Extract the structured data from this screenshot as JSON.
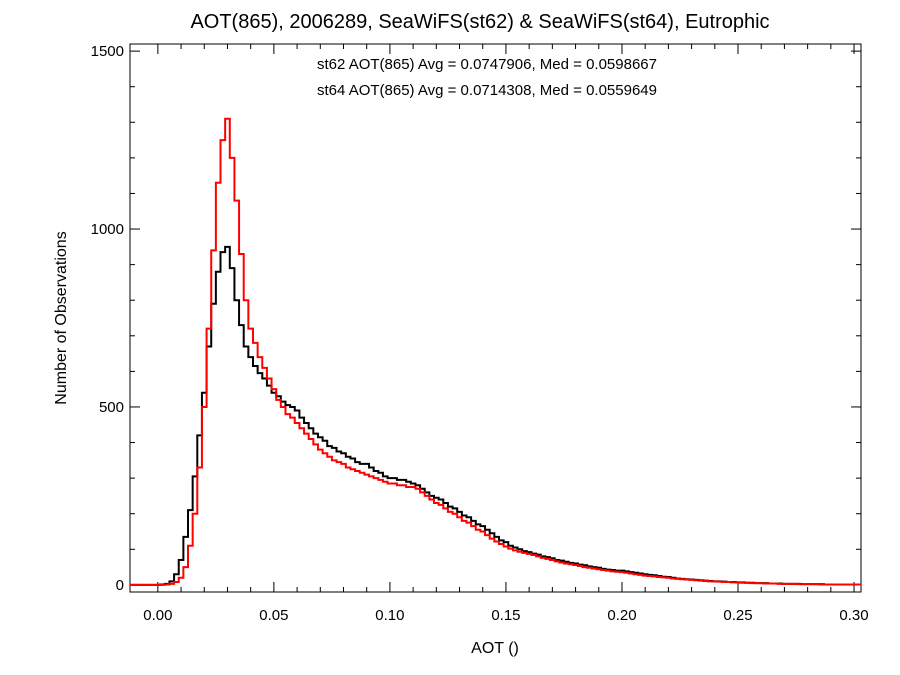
{
  "chart_data": {
    "type": "line",
    "step": true,
    "title": "AOT(865), 2006289, SeaWiFS(st62) & SeaWiFS(st64), Eutrophic",
    "xlabel": "AOT ()",
    "ylabel": "Number of Observations",
    "xlim": [
      -0.012,
      0.303
    ],
    "ylim": [
      -20,
      1520
    ],
    "x_ticks": [
      0.0,
      0.05,
      0.1,
      0.15,
      0.2,
      0.25,
      0.3
    ],
    "x_tick_labels": [
      "0.00",
      "0.05",
      "0.10",
      "0.15",
      "0.20",
      "0.25",
      "0.30"
    ],
    "y_ticks": [
      0,
      500,
      1000,
      1500
    ],
    "y_tick_labels": [
      "0",
      "500",
      "1000",
      "1500"
    ],
    "grid": false,
    "annotations": [
      {
        "text": "st62 AOT(865) Avg = 0.0747906, Med = 0.0598667",
        "color": "#000000"
      },
      {
        "text": "st64 AOT(865) Avg = 0.0714308, Med = 0.0559649",
        "color": "#ff0000"
      }
    ],
    "series": [
      {
        "color": "#000000",
        "points": [
          [
            0.0,
            0
          ],
          [
            0.002,
            1
          ],
          [
            0.004,
            3
          ],
          [
            0.006,
            10
          ],
          [
            0.008,
            30
          ],
          [
            0.01,
            70
          ],
          [
            0.012,
            135
          ],
          [
            0.014,
            210
          ],
          [
            0.016,
            305
          ],
          [
            0.018,
            420
          ],
          [
            0.02,
            540
          ],
          [
            0.022,
            670
          ],
          [
            0.024,
            790
          ],
          [
            0.026,
            880
          ],
          [
            0.028,
            935
          ],
          [
            0.03,
            950
          ],
          [
            0.032,
            890
          ],
          [
            0.034,
            800
          ],
          [
            0.036,
            730
          ],
          [
            0.038,
            670
          ],
          [
            0.04,
            640
          ],
          [
            0.042,
            615
          ],
          [
            0.044,
            595
          ],
          [
            0.046,
            580
          ],
          [
            0.048,
            560
          ],
          [
            0.05,
            540
          ],
          [
            0.052,
            530
          ],
          [
            0.054,
            515
          ],
          [
            0.056,
            505
          ],
          [
            0.058,
            500
          ],
          [
            0.06,
            490
          ],
          [
            0.062,
            470
          ],
          [
            0.064,
            455
          ],
          [
            0.066,
            440
          ],
          [
            0.068,
            425
          ],
          [
            0.07,
            415
          ],
          [
            0.072,
            405
          ],
          [
            0.074,
            390
          ],
          [
            0.076,
            385
          ],
          [
            0.078,
            375
          ],
          [
            0.08,
            370
          ],
          [
            0.082,
            360
          ],
          [
            0.084,
            355
          ],
          [
            0.086,
            345
          ],
          [
            0.088,
            340
          ],
          [
            0.09,
            340
          ],
          [
            0.092,
            330
          ],
          [
            0.094,
            320
          ],
          [
            0.096,
            315
          ],
          [
            0.098,
            305
          ],
          [
            0.1,
            300
          ],
          [
            0.102,
            300
          ],
          [
            0.104,
            295
          ],
          [
            0.106,
            295
          ],
          [
            0.108,
            290
          ],
          [
            0.11,
            285
          ],
          [
            0.112,
            280
          ],
          [
            0.114,
            270
          ],
          [
            0.116,
            260
          ],
          [
            0.118,
            250
          ],
          [
            0.12,
            245
          ],
          [
            0.122,
            240
          ],
          [
            0.124,
            230
          ],
          [
            0.126,
            220
          ],
          [
            0.128,
            215
          ],
          [
            0.13,
            205
          ],
          [
            0.132,
            195
          ],
          [
            0.134,
            190
          ],
          [
            0.136,
            180
          ],
          [
            0.138,
            170
          ],
          [
            0.14,
            165
          ],
          [
            0.142,
            155
          ],
          [
            0.144,
            145
          ],
          [
            0.146,
            135
          ],
          [
            0.148,
            125
          ],
          [
            0.15,
            120
          ],
          [
            0.152,
            110
          ],
          [
            0.154,
            105
          ],
          [
            0.156,
            100
          ],
          [
            0.158,
            95
          ],
          [
            0.16,
            92
          ],
          [
            0.162,
            88
          ],
          [
            0.164,
            85
          ],
          [
            0.166,
            80
          ],
          [
            0.168,
            78
          ],
          [
            0.17,
            75
          ],
          [
            0.172,
            70
          ],
          [
            0.174,
            68
          ],
          [
            0.176,
            65
          ],
          [
            0.178,
            62
          ],
          [
            0.18,
            60
          ],
          [
            0.182,
            57
          ],
          [
            0.184,
            55
          ],
          [
            0.186,
            52
          ],
          [
            0.188,
            50
          ],
          [
            0.19,
            48
          ],
          [
            0.192,
            45
          ],
          [
            0.194,
            43
          ],
          [
            0.196,
            42
          ],
          [
            0.198,
            40
          ],
          [
            0.2,
            40
          ],
          [
            0.202,
            38
          ],
          [
            0.204,
            36
          ],
          [
            0.206,
            34
          ],
          [
            0.208,
            32
          ],
          [
            0.21,
            30
          ],
          [
            0.212,
            28
          ],
          [
            0.214,
            27
          ],
          [
            0.216,
            25
          ],
          [
            0.218,
            23
          ],
          [
            0.22,
            22
          ],
          [
            0.222,
            20
          ],
          [
            0.224,
            18
          ],
          [
            0.226,
            17
          ],
          [
            0.228,
            16
          ],
          [
            0.23,
            15
          ],
          [
            0.232,
            14
          ],
          [
            0.234,
            13
          ],
          [
            0.236,
            12
          ],
          [
            0.238,
            11
          ],
          [
            0.24,
            10
          ],
          [
            0.242,
            10
          ],
          [
            0.244,
            9
          ],
          [
            0.246,
            8
          ],
          [
            0.248,
            8
          ],
          [
            0.25,
            7
          ],
          [
            0.252,
            7
          ],
          [
            0.254,
            6
          ],
          [
            0.256,
            6
          ],
          [
            0.258,
            5
          ],
          [
            0.26,
            5
          ],
          [
            0.262,
            5
          ],
          [
            0.264,
            4
          ],
          [
            0.266,
            4
          ],
          [
            0.268,
            4
          ],
          [
            0.27,
            3
          ],
          [
            0.272,
            3
          ],
          [
            0.274,
            3
          ],
          [
            0.276,
            3
          ],
          [
            0.278,
            2
          ],
          [
            0.28,
            2
          ],
          [
            0.282,
            2
          ],
          [
            0.284,
            2
          ],
          [
            0.286,
            2
          ],
          [
            0.288,
            1
          ],
          [
            0.29,
            1
          ],
          [
            0.292,
            1
          ],
          [
            0.294,
            1
          ],
          [
            0.296,
            1
          ],
          [
            0.298,
            1
          ],
          [
            0.3,
            1
          ]
        ]
      },
      {
        "color": "#ff0000",
        "points": [
          [
            0.0,
            0
          ],
          [
            0.002,
            0
          ],
          [
            0.004,
            1
          ],
          [
            0.006,
            3
          ],
          [
            0.008,
            8
          ],
          [
            0.01,
            20
          ],
          [
            0.012,
            50
          ],
          [
            0.014,
            110
          ],
          [
            0.016,
            200
          ],
          [
            0.018,
            330
          ],
          [
            0.02,
            500
          ],
          [
            0.022,
            720
          ],
          [
            0.024,
            940
          ],
          [
            0.026,
            1130
          ],
          [
            0.028,
            1250
          ],
          [
            0.03,
            1310
          ],
          [
            0.032,
            1200
          ],
          [
            0.034,
            1080
          ],
          [
            0.036,
            930
          ],
          [
            0.038,
            800
          ],
          [
            0.04,
            720
          ],
          [
            0.042,
            680
          ],
          [
            0.044,
            640
          ],
          [
            0.046,
            610
          ],
          [
            0.048,
            580
          ],
          [
            0.05,
            550
          ],
          [
            0.052,
            520
          ],
          [
            0.054,
            500
          ],
          [
            0.056,
            480
          ],
          [
            0.058,
            470
          ],
          [
            0.06,
            455
          ],
          [
            0.062,
            440
          ],
          [
            0.064,
            425
          ],
          [
            0.066,
            410
          ],
          [
            0.068,
            395
          ],
          [
            0.07,
            380
          ],
          [
            0.072,
            370
          ],
          [
            0.074,
            360
          ],
          [
            0.076,
            350
          ],
          [
            0.078,
            345
          ],
          [
            0.08,
            340
          ],
          [
            0.082,
            330
          ],
          [
            0.084,
            325
          ],
          [
            0.086,
            320
          ],
          [
            0.088,
            315
          ],
          [
            0.09,
            310
          ],
          [
            0.092,
            305
          ],
          [
            0.094,
            300
          ],
          [
            0.096,
            295
          ],
          [
            0.098,
            290
          ],
          [
            0.1,
            285
          ],
          [
            0.102,
            285
          ],
          [
            0.104,
            280
          ],
          [
            0.106,
            280
          ],
          [
            0.108,
            275
          ],
          [
            0.11,
            275
          ],
          [
            0.112,
            270
          ],
          [
            0.114,
            260
          ],
          [
            0.116,
            250
          ],
          [
            0.118,
            240
          ],
          [
            0.12,
            230
          ],
          [
            0.122,
            225
          ],
          [
            0.124,
            215
          ],
          [
            0.126,
            205
          ],
          [
            0.128,
            200
          ],
          [
            0.13,
            190
          ],
          [
            0.132,
            180
          ],
          [
            0.134,
            175
          ],
          [
            0.136,
            165
          ],
          [
            0.138,
            155
          ],
          [
            0.14,
            150
          ],
          [
            0.142,
            140
          ],
          [
            0.144,
            130
          ],
          [
            0.146,
            122
          ],
          [
            0.148,
            115
          ],
          [
            0.15,
            108
          ],
          [
            0.152,
            102
          ],
          [
            0.154,
            97
          ],
          [
            0.156,
            93
          ],
          [
            0.158,
            90
          ],
          [
            0.16,
            87
          ],
          [
            0.162,
            84
          ],
          [
            0.164,
            80
          ],
          [
            0.166,
            76
          ],
          [
            0.168,
            73
          ],
          [
            0.17,
            70
          ],
          [
            0.172,
            66
          ],
          [
            0.174,
            63
          ],
          [
            0.176,
            60
          ],
          [
            0.178,
            58
          ],
          [
            0.18,
            56
          ],
          [
            0.182,
            53
          ],
          [
            0.184,
            50
          ],
          [
            0.186,
            48
          ],
          [
            0.188,
            46
          ],
          [
            0.19,
            44
          ],
          [
            0.192,
            42
          ],
          [
            0.194,
            40
          ],
          [
            0.196,
            38
          ],
          [
            0.198,
            37
          ],
          [
            0.2,
            36
          ],
          [
            0.202,
            34
          ],
          [
            0.204,
            32
          ],
          [
            0.206,
            30
          ],
          [
            0.208,
            28
          ],
          [
            0.21,
            26
          ],
          [
            0.212,
            25
          ],
          [
            0.214,
            24
          ],
          [
            0.216,
            22
          ],
          [
            0.218,
            21
          ],
          [
            0.22,
            20
          ],
          [
            0.222,
            18
          ],
          [
            0.224,
            17
          ],
          [
            0.226,
            16
          ],
          [
            0.228,
            15
          ],
          [
            0.23,
            14
          ],
          [
            0.232,
            13
          ],
          [
            0.234,
            12
          ],
          [
            0.236,
            11
          ],
          [
            0.238,
            10
          ],
          [
            0.24,
            10
          ],
          [
            0.242,
            9
          ],
          [
            0.244,
            8
          ],
          [
            0.246,
            8
          ],
          [
            0.248,
            7
          ],
          [
            0.25,
            7
          ],
          [
            0.252,
            6
          ],
          [
            0.254,
            6
          ],
          [
            0.256,
            5
          ],
          [
            0.258,
            5
          ],
          [
            0.26,
            5
          ],
          [
            0.262,
            4
          ],
          [
            0.264,
            4
          ],
          [
            0.266,
            4
          ],
          [
            0.268,
            3
          ],
          [
            0.27,
            3
          ],
          [
            0.272,
            3
          ],
          [
            0.274,
            3
          ],
          [
            0.276,
            2
          ],
          [
            0.278,
            2
          ],
          [
            0.28,
            2
          ],
          [
            0.282,
            2
          ],
          [
            0.284,
            2
          ],
          [
            0.286,
            1
          ],
          [
            0.288,
            1
          ],
          [
            0.29,
            1
          ],
          [
            0.292,
            1
          ],
          [
            0.294,
            1
          ],
          [
            0.296,
            1
          ],
          [
            0.298,
            1
          ],
          [
            0.3,
            1
          ]
        ]
      }
    ]
  }
}
